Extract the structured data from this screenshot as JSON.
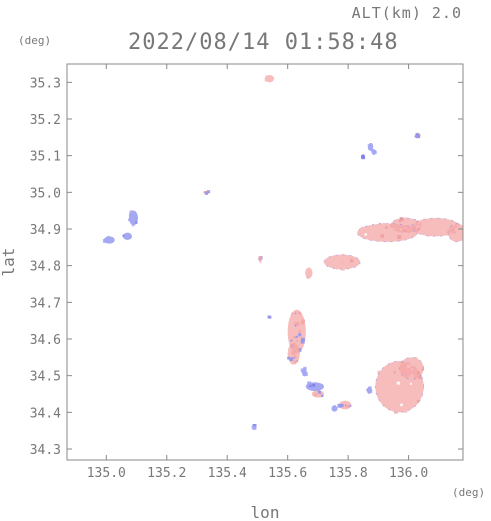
{
  "header": {
    "altitude_label": "ALT(km) 2.0",
    "datetime": "2022/08/14 01:58:48"
  },
  "chart_data": {
    "type": "heatmap",
    "title": "2022/08/14 01:58:48",
    "subtitle": "ALT(km) 2.0",
    "xlabel": "lon",
    "ylabel": "lat",
    "x_unit": "(deg)",
    "y_unit": "(deg)",
    "xlim": [
      134.87,
      136.18
    ],
    "ylim": [
      34.27,
      35.35
    ],
    "x_ticks": [
      135.0,
      135.2,
      135.4,
      135.6,
      135.8,
      136.0
    ],
    "x_tick_labels": [
      "135.0",
      "135.2",
      "135.4",
      "135.6",
      "135.8",
      "136.0"
    ],
    "y_ticks": [
      34.3,
      34.4,
      34.5,
      34.6,
      34.7,
      34.8,
      34.9,
      35.0,
      35.1,
      35.2,
      35.3
    ],
    "y_tick_labels": [
      "34.3",
      "34.4",
      "34.5",
      "34.6",
      "34.7",
      "34.8",
      "34.9",
      "35.0",
      "35.1",
      "35.2",
      "35.3"
    ],
    "grid": false,
    "colors": {
      "positive": "#f4a6a6",
      "negative": "#8f94ee",
      "axis": "#888888",
      "text": "#777777"
    },
    "blobs": [
      {
        "lon": 135.54,
        "lat": 35.31,
        "rlon": 0.015,
        "rlat": 0.01,
        "sign": "positive"
      },
      {
        "lon": 136.03,
        "lat": 35.155,
        "rlon": 0.01,
        "rlat": 0.008,
        "sign": "mixed"
      },
      {
        "lon": 135.875,
        "lat": 35.125,
        "rlon": 0.008,
        "rlat": 0.01,
        "sign": "negative"
      },
      {
        "lon": 135.885,
        "lat": 35.11,
        "rlon": 0.007,
        "rlat": 0.008,
        "sign": "negative"
      },
      {
        "lon": 135.85,
        "lat": 35.1,
        "rlon": 0.004,
        "rlat": 0.005,
        "sign": "negative"
      },
      {
        "lon": 135.33,
        "lat": 35.0,
        "rlon": 0.01,
        "rlat": 0.004,
        "sign": "mixed"
      },
      {
        "lon": 135.09,
        "lat": 34.93,
        "rlon": 0.015,
        "rlat": 0.02,
        "sign": "negative"
      },
      {
        "lon": 135.07,
        "lat": 34.88,
        "rlon": 0.015,
        "rlat": 0.01,
        "sign": "negative"
      },
      {
        "lon": 135.01,
        "lat": 34.87,
        "rlon": 0.018,
        "rlat": 0.01,
        "sign": "negative"
      },
      {
        "lon": 135.99,
        "lat": 34.91,
        "rlon": 0.05,
        "rlat": 0.02,
        "sign": "positive"
      },
      {
        "lon": 135.93,
        "lat": 34.89,
        "rlon": 0.1,
        "rlat": 0.025,
        "sign": "positive"
      },
      {
        "lon": 136.09,
        "lat": 34.905,
        "rlon": 0.08,
        "rlat": 0.025,
        "sign": "positive"
      },
      {
        "lon": 136.16,
        "lat": 34.89,
        "rlon": 0.03,
        "rlat": 0.025,
        "sign": "positive"
      },
      {
        "lon": 135.78,
        "lat": 34.81,
        "rlon": 0.06,
        "rlat": 0.02,
        "sign": "positive"
      },
      {
        "lon": 135.67,
        "lat": 34.78,
        "rlon": 0.012,
        "rlat": 0.015,
        "sign": "positive"
      },
      {
        "lon": 135.51,
        "lat": 34.815,
        "rlon": 0.003,
        "rlat": 0.008,
        "sign": "mixed"
      },
      {
        "lon": 135.63,
        "lat": 34.62,
        "rlon": 0.03,
        "rlat": 0.06,
        "sign": "mixed"
      },
      {
        "lon": 135.62,
        "lat": 34.56,
        "rlon": 0.02,
        "rlat": 0.03,
        "sign": "mixed"
      },
      {
        "lon": 135.655,
        "lat": 34.51,
        "rlon": 0.008,
        "rlat": 0.012,
        "sign": "negative"
      },
      {
        "lon": 135.69,
        "lat": 34.47,
        "rlon": 0.03,
        "rlat": 0.012,
        "sign": "negative"
      },
      {
        "lon": 135.7,
        "lat": 34.45,
        "rlon": 0.02,
        "rlat": 0.01,
        "sign": "mixed"
      },
      {
        "lon": 135.79,
        "lat": 34.42,
        "rlon": 0.02,
        "rlat": 0.012,
        "sign": "mixed"
      },
      {
        "lon": 135.755,
        "lat": 34.41,
        "rlon": 0.01,
        "rlat": 0.008,
        "sign": "negative"
      },
      {
        "lon": 135.97,
        "lat": 34.47,
        "rlon": 0.08,
        "rlat": 0.07,
        "sign": "positive"
      },
      {
        "lon": 136.01,
        "lat": 34.52,
        "rlon": 0.04,
        "rlat": 0.03,
        "sign": "positive"
      },
      {
        "lon": 135.87,
        "lat": 34.46,
        "rlon": 0.008,
        "rlat": 0.01,
        "sign": "negative"
      },
      {
        "lon": 135.54,
        "lat": 34.66,
        "rlon": 0.003,
        "rlat": 0.004,
        "sign": "mixed"
      },
      {
        "lon": 135.49,
        "lat": 34.36,
        "rlon": 0.002,
        "rlat": 0.002,
        "sign": "negative"
      }
    ]
  }
}
